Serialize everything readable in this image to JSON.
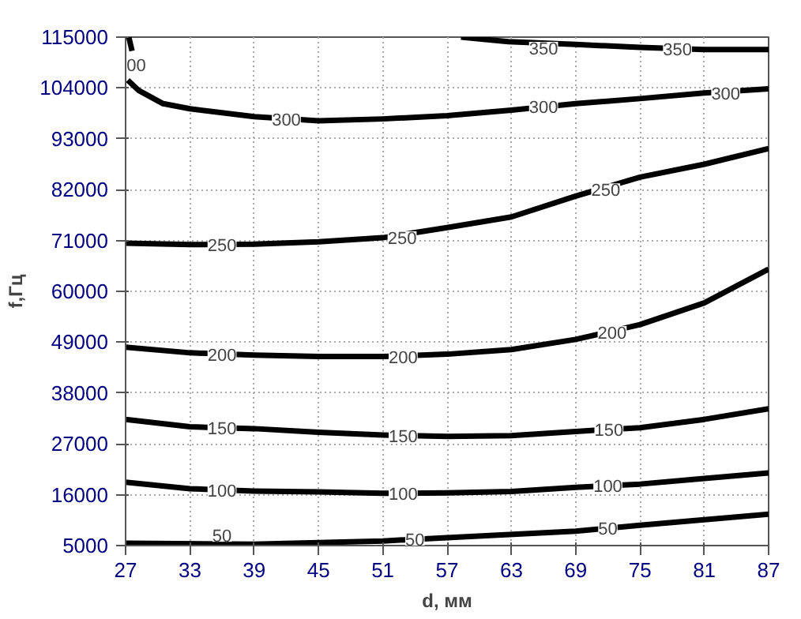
{
  "chart_data": {
    "type": "line",
    "xlabel": "d, мм",
    "ylabel": "f,Гц",
    "xlim": [
      27,
      87
    ],
    "ylim": [
      5000,
      115000
    ],
    "xticks": [
      27,
      33,
      39,
      45,
      51,
      57,
      63,
      69,
      75,
      81,
      87
    ],
    "yticks": [
      5000,
      16000,
      27000,
      38000,
      49000,
      60000,
      71000,
      82000,
      93000,
      104000,
      115000
    ],
    "grid": true,
    "series": [
      {
        "color": "#000000",
        "x": [
          27,
          39,
          51,
          57,
          69,
          75,
          87
        ],
        "values": [
          5500,
          5300,
          6000,
          6700,
          8100,
          9400,
          11800
        ]
      },
      {
        "color": "#000000",
        "x": [
          27,
          33,
          39,
          45,
          51,
          57,
          63,
          69,
          75,
          81,
          87
        ],
        "values": [
          18700,
          17300,
          16800,
          16600,
          16300,
          16400,
          16700,
          17600,
          18300,
          19500,
          20700
        ]
      },
      {
        "color": "#000000",
        "x": [
          27,
          33,
          39,
          45,
          51,
          57,
          63,
          69,
          75,
          81,
          87
        ],
        "values": [
          32300,
          30700,
          30300,
          29500,
          28900,
          28600,
          28800,
          29700,
          30500,
          32300,
          34600
        ]
      },
      {
        "color": "#000000",
        "x": [
          27,
          33,
          39,
          45,
          51,
          57,
          63,
          69,
          75,
          81,
          87
        ],
        "values": [
          47900,
          46700,
          46200,
          45900,
          45900,
          46400,
          47400,
          49600,
          52800,
          57500,
          64800
        ]
      },
      {
        "color": "#000000",
        "x": [
          27,
          33,
          39,
          45,
          51,
          57,
          63,
          69,
          75,
          81,
          87
        ],
        "values": [
          70400,
          70100,
          70200,
          70700,
          71600,
          73800,
          76100,
          80600,
          84700,
          87500,
          90900
        ]
      },
      {
        "color": "#000000",
        "x": [
          27.2,
          28.2,
          30.5,
          33,
          39,
          45,
          51,
          57,
          63,
          69,
          75,
          81,
          87
        ],
        "values": [
          105700,
          103500,
          100600,
          99500,
          97800,
          96900,
          97300,
          98000,
          99200,
          100600,
          101700,
          102900,
          103800
        ]
      },
      {
        "color": "#000000",
        "x": [
          58.3,
          62.7,
          69,
          75,
          81,
          87
        ],
        "values": [
          115000,
          114000,
          113400,
          112800,
          112300,
          112300
        ]
      },
      {
        "color": "#000000",
        "x": [
          27.3,
          27.6
        ],
        "values": [
          115000,
          112000
        ]
      }
    ],
    "annotations": [
      {
        "text": "50",
        "x": 36,
        "y": 7200
      },
      {
        "text": "50",
        "x": 54,
        "y": 6300
      },
      {
        "text": "50",
        "x": 72,
        "y": 8800
      },
      {
        "text": "100",
        "x": 36,
        "y": 17000
      },
      {
        "text": "100",
        "x": 52.9,
        "y": 16300
      },
      {
        "text": "100",
        "x": 72,
        "y": 17900
      },
      {
        "text": "150",
        "x": 36,
        "y": 30500
      },
      {
        "text": "150",
        "x": 52.9,
        "y": 28800
      },
      {
        "text": "150",
        "x": 72.1,
        "y": 30100
      },
      {
        "text": "200",
        "x": 36,
        "y": 46400
      },
      {
        "text": "200",
        "x": 52.9,
        "y": 45900
      },
      {
        "text": "200",
        "x": 72.4,
        "y": 51100
      },
      {
        "text": "250",
        "x": 36,
        "y": 70100
      },
      {
        "text": "250",
        "x": 52.8,
        "y": 71600
      },
      {
        "text": "250",
        "x": 71.8,
        "y": 82000
      },
      {
        "text": "300",
        "x": 42,
        "y": 97300
      },
      {
        "text": "300",
        "x": 66,
        "y": 99900
      },
      {
        "text": "300",
        "x": 83,
        "y": 102900
      },
      {
        "text": "350",
        "x": 66,
        "y": 112600
      },
      {
        "text": "350",
        "x": 78.5,
        "y": 112500
      },
      {
        "text": "00",
        "x": 28,
        "y": 109000
      }
    ]
  }
}
